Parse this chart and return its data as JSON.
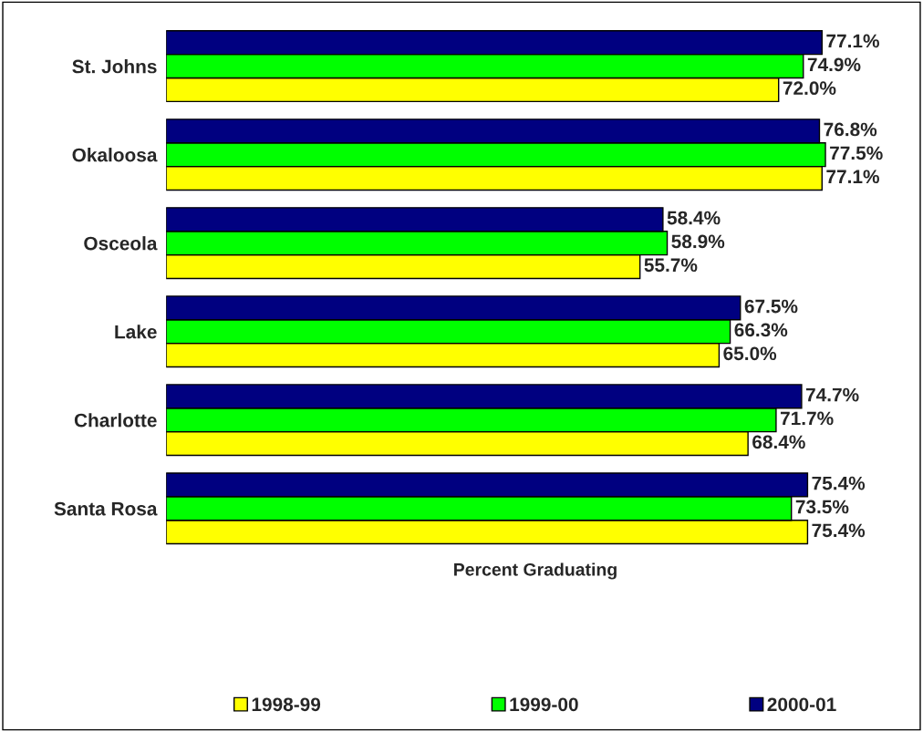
{
  "chart_data": {
    "type": "bar",
    "orientation": "horizontal",
    "xlabel": "Percent Graduating",
    "categories": [
      "St. Johns",
      "Okaloosa",
      "Osceola",
      "Lake",
      "Charlotte",
      "Santa Rosa"
    ],
    "series": [
      {
        "name": "1998-99",
        "color": "#ffff00",
        "values": [
          72.0,
          77.1,
          55.7,
          65.0,
          68.4,
          75.4
        ],
        "value_labels": [
          "72.0%",
          "77.1%",
          "55.7%",
          "65.0%",
          "68.4%",
          "75.4%"
        ]
      },
      {
        "name": "1999-00",
        "color": "#00ff00",
        "values": [
          74.9,
          77.5,
          58.9,
          66.3,
          71.7,
          73.5
        ],
        "value_labels": [
          "74.9%",
          "77.5%",
          "58.9%",
          "66.3%",
          "71.7%",
          "73.5%"
        ]
      },
      {
        "name": "2000-01",
        "color": "#000080",
        "values": [
          77.1,
          76.8,
          58.4,
          67.5,
          74.7,
          75.4
        ],
        "value_labels": [
          "77.1%",
          "76.8%",
          "58.4%",
          "67.5%",
          "74.7%",
          "75.4%"
        ]
      }
    ],
    "legend": "bottom",
    "tick_labels": "y",
    "grid": false
  }
}
